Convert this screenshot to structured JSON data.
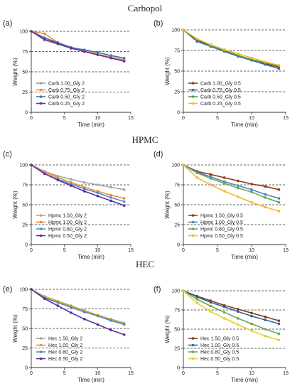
{
  "sections": [
    {
      "title": "Carbopol"
    },
    {
      "title": "HPMC"
    },
    {
      "title": "HEC"
    }
  ],
  "chart_data": [
    {
      "type": "line",
      "panel": "(a)",
      "section": "Carbopol",
      "xlabel": "Time (min)",
      "ylabel": "Weight (%)",
      "xlim": [
        0,
        15
      ],
      "ylim": [
        0,
        100
      ],
      "xticks": [
        "0",
        "5",
        "10",
        "15"
      ],
      "yticks": [
        "0",
        "25",
        "50",
        "75",
        "100"
      ],
      "grid": "dashed horizontal",
      "legend": "bottom-left",
      "x": [
        0,
        2,
        4,
        6,
        8,
        10,
        12,
        14
      ],
      "series": [
        {
          "name": "Carb 1.00_Gly 2",
          "color": "#9e9e9e",
          "values": [
            100,
            89,
            84,
            79,
            75,
            71,
            68,
            65
          ]
        },
        {
          "name": "Carb 0.75_Gly 2",
          "color": "#f28a30",
          "values": [
            100,
            97,
            86,
            80,
            76,
            72,
            68,
            64
          ]
        },
        {
          "name": "Carb 0.50_Gly 2",
          "color": "#3c78a8",
          "values": [
            100,
            92,
            86,
            80,
            77,
            74,
            70,
            67
          ]
        },
        {
          "name": "Carb 0.25_Gly 2",
          "color": "#6a2fa0",
          "values": [
            100,
            90,
            85,
            79,
            75,
            71,
            67,
            63
          ]
        }
      ]
    },
    {
      "type": "line",
      "panel": "(b)",
      "section": "Carbopol",
      "xlabel": "Time (min)",
      "ylabel": "Weight (%)",
      "xlim": [
        0,
        15
      ],
      "ylim": [
        0,
        100
      ],
      "xticks": [
        "0",
        "5",
        "10",
        "15"
      ],
      "yticks": [
        "0",
        "25",
        "50",
        "75",
        "100"
      ],
      "grid": "dashed horizontal",
      "legend": "bottom-left",
      "x": [
        0,
        2,
        4,
        6,
        8,
        10,
        12,
        14
      ],
      "series": [
        {
          "name": "Carb 1.00_Gly 0.5",
          "color": "#9a3412",
          "values": [
            100,
            88,
            80,
            74,
            68,
            64,
            59,
            55
          ]
        },
        {
          "name": "Carb 0.75_Gly 0.5",
          "color": "#2f6db0",
          "values": [
            100,
            86,
            80,
            74,
            68,
            63,
            58,
            53
          ]
        },
        {
          "name": "Carb 0.50_Gly 0.5",
          "color": "#4c9a4c",
          "values": [
            100,
            89,
            81,
            75,
            69,
            64,
            60,
            56
          ]
        },
        {
          "name": "Carb 0.25_Gly 0.5",
          "color": "#f2b82e",
          "values": [
            100,
            89,
            82,
            76,
            71,
            66,
            61,
            57
          ]
        }
      ]
    },
    {
      "type": "line",
      "panel": "(c)",
      "section": "HPMC",
      "xlabel": "Time (min)",
      "ylabel": "Weight (%)",
      "xlim": [
        0,
        15
      ],
      "ylim": [
        0,
        100
      ],
      "xticks": [
        "0",
        "5",
        "10",
        "15"
      ],
      "yticks": [
        "0",
        "25",
        "50",
        "75",
        "100"
      ],
      "grid": "dashed horizontal",
      "legend": "bottom-left",
      "x": [
        0,
        2,
        4,
        6,
        8,
        10,
        12,
        14
      ],
      "series": [
        {
          "name": "Hpmc 1.50_Gly 2",
          "color": "#a6a6a6",
          "values": [
            100,
            92,
            86,
            82,
            78,
            75,
            72,
            69
          ]
        },
        {
          "name": "Hpmc 1.00_Gly 2",
          "color": "#f28a30",
          "values": [
            100,
            91,
            84,
            78,
            72,
            67,
            62,
            58
          ]
        },
        {
          "name": "Hpmc 0.80_Gly 2",
          "color": "#4a90c8",
          "values": [
            100,
            89,
            82,
            76,
            70,
            65,
            59,
            54
          ]
        },
        {
          "name": "Hpmc 0.50_Gly 2",
          "color": "#5a2fa0",
          "values": [
            100,
            89,
            81,
            74,
            67,
            61,
            55,
            49
          ]
        }
      ]
    },
    {
      "type": "line",
      "panel": "(d)",
      "section": "HPMC",
      "xlabel": "Time (min)",
      "ylabel": "Weight (%)",
      "xlim": [
        0,
        15
      ],
      "ylim": [
        0,
        100
      ],
      "xticks": [
        "0",
        "5",
        "10",
        "15"
      ],
      "yticks": [
        "0",
        "25",
        "50",
        "75",
        "100"
      ],
      "grid": "dashed horizontal",
      "legend": "bottom-left",
      "x": [
        0,
        2,
        4,
        6,
        8,
        10,
        12,
        14
      ],
      "series": [
        {
          "name": "Hpmc 1.50_Gly 0.5",
          "color": "#8b3a12",
          "values": [
            100,
            92,
            88,
            84,
            80,
            76,
            73,
            69
          ]
        },
        {
          "name": "Hpmc 1.00_Gly 0.5",
          "color": "#4a82c0",
          "values": [
            100,
            91,
            85,
            79,
            74,
            69,
            63,
            58
          ]
        },
        {
          "name": "Hpmc 0.80_Gly 0.5",
          "color": "#5fa85f",
          "values": [
            100,
            90,
            83,
            77,
            71,
            66,
            59,
            53
          ]
        },
        {
          "name": "Hpmc 0.50_Gly 0.5",
          "color": "#f2b82e",
          "values": [
            100,
            84,
            75,
            67,
            60,
            53,
            47,
            42
          ]
        }
      ]
    },
    {
      "type": "line",
      "panel": "(e)",
      "section": "HEC",
      "xlabel": "Time (min)",
      "ylabel": "Weight (%)",
      "xlim": [
        0,
        15
      ],
      "ylim": [
        0,
        100
      ],
      "xticks": [
        "0",
        "5",
        "10",
        "15"
      ],
      "yticks": [
        "0",
        "25",
        "50",
        "75",
        "100"
      ],
      "grid": "dashed horizontal",
      "legend": "bottom-left",
      "x": [
        0,
        2,
        4,
        6,
        8,
        10,
        12,
        14
      ],
      "series": [
        {
          "name": "Hec 1.50_Gly 2",
          "color": "#a6a6a6",
          "values": [
            100,
            90,
            84,
            78,
            72,
            67,
            62,
            57
          ]
        },
        {
          "name": "Hec 1.00_Gly 2",
          "color": "#d4a420",
          "values": [
            100,
            91,
            85,
            79,
            73,
            67,
            61,
            56
          ]
        },
        {
          "name": "Hec 0.80_Gly 2",
          "color": "#4a90c8",
          "values": [
            100,
            89,
            83,
            77,
            71,
            66,
            60,
            55
          ]
        },
        {
          "name": "Hec 0.50_Gly 2",
          "color": "#5a2fa0",
          "values": [
            100,
            88,
            79,
            70,
            62,
            55,
            48,
            42
          ]
        }
      ]
    },
    {
      "type": "line",
      "panel": "(f)",
      "section": "HEC",
      "xlabel": "Time (min)",
      "ylabel": "Weight (%)",
      "xlim": [
        0,
        15
      ],
      "ylim": [
        0,
        100
      ],
      "xticks": [
        "0",
        "5",
        "10",
        "15"
      ],
      "yticks": [
        "0",
        "25",
        "50",
        "75",
        "100"
      ],
      "grid": "dashed horizontal",
      "legend": "bottom-left",
      "x": [
        0,
        2,
        4,
        6,
        8,
        10,
        12,
        14
      ],
      "series": [
        {
          "name": "Hec 1.50_Gly 0.5",
          "color": "#8b3a12",
          "values": [
            100,
            93,
            87,
            81,
            76,
            71,
            66,
            61
          ]
        },
        {
          "name": "Hec 1.00_Gly 0.5",
          "color": "#2f5fa0",
          "values": [
            100,
            92,
            85,
            79,
            73,
            67,
            62,
            57
          ]
        },
        {
          "name": "Hec 0.80_Gly 0.5",
          "color": "#6aa84f",
          "values": [
            100,
            89,
            80,
            72,
            64,
            57,
            50,
            44
          ]
        },
        {
          "name": "Hec 0.50_Gly 0.5",
          "color": "#e8d020",
          "values": [
            100,
            84,
            73,
            64,
            56,
            48,
            41,
            36
          ]
        }
      ]
    }
  ]
}
